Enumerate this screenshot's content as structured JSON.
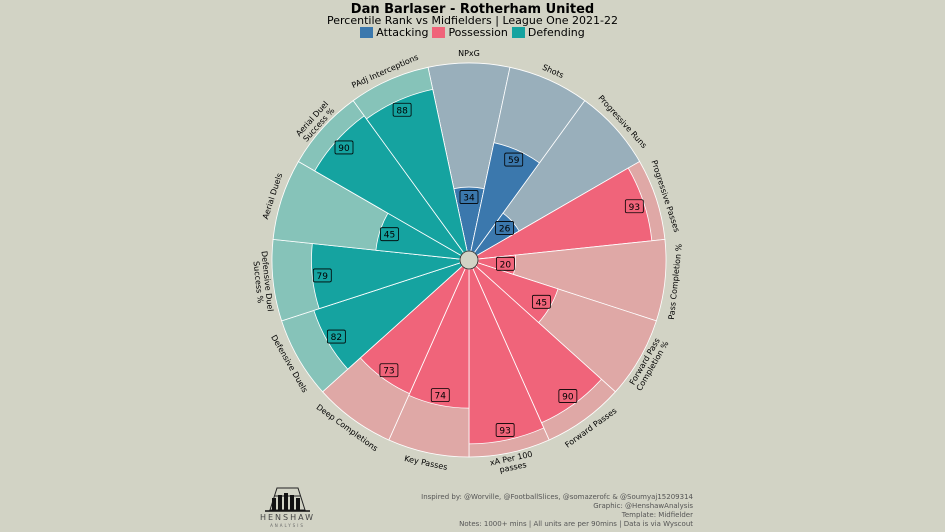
{
  "header": {
    "title": "Dan Barlaser - Rotherham United",
    "subtitle": "Percentile Rank vs Midfielders | League One 2021-22"
  },
  "legend": [
    {
      "label": "Attacking",
      "color": "#3b78ad"
    },
    {
      "label": "Possession",
      "color": "#f0647a"
    },
    {
      "label": "Defending",
      "color": "#15a3a0"
    }
  ],
  "chart_data": {
    "type": "polar-bar",
    "title": "Dan Barlaser - Rotherham United",
    "scale": [
      0,
      100
    ],
    "categories": [
      "NPxG",
      "Shots",
      "Progressive Runs",
      "Progressive Passes",
      "Pass Completion %",
      "Forward Pass Completion %",
      "Forward Passes",
      "xA Per 100 passes",
      "Key Passes",
      "Deep Completions",
      "Defensive Duels",
      "Defensive Duel Success %",
      "Aerial Duels",
      "Aerial Duel Success %",
      "PAdj Interceptions"
    ],
    "label_lines": [
      [
        "NPxG"
      ],
      [
        "Shots"
      ],
      [
        "Progressive Runs"
      ],
      [
        "Progressive Passes"
      ],
      [
        "Pass Completion %"
      ],
      [
        "Forward Pass",
        "Completion %"
      ],
      [
        "Forward Passes"
      ],
      [
        "xA Per 100",
        "passes"
      ],
      [
        "Key Passes"
      ],
      [
        "Deep Completions"
      ],
      [
        "Defensive Duels"
      ],
      [
        "Defensive Duel",
        "Success %"
      ],
      [
        "Aerial Duels"
      ],
      [
        "Aerial Duel",
        "Success %"
      ],
      [
        "PAdj Interceptions"
      ]
    ],
    "groups": [
      "Attacking",
      "Attacking",
      "Attacking",
      "Possession",
      "Possession",
      "Possession",
      "Possession",
      "Possession",
      "Possession",
      "Possession",
      "Defending",
      "Defending",
      "Defending",
      "Defending",
      "Defending"
    ],
    "values": [
      34,
      59,
      26,
      93,
      20,
      45,
      90,
      93,
      74,
      73,
      82,
      79,
      45,
      90,
      88
    ],
    "value_labels": [
      "34",
      "59",
      "26",
      "93",
      "20",
      "45",
      "90",
      "93",
      "74",
      "73",
      "82",
      "79",
      "45",
      "90",
      "88"
    ],
    "colors": {
      "Attacking": {
        "bar": "#3b78ad",
        "bg": "#99afbb"
      },
      "Possession": {
        "bar": "#f0647a",
        "bg": "#dfa8a6"
      },
      "Defending": {
        "bar": "#15a3a0",
        "bg": "#86c3b9"
      }
    }
  },
  "footer": {
    "credits": [
      "Inspired by: @Worville, @FootballSlices, @somazerofc & @Soumyaj15209314",
      "Graphic: @HenshawAnalysis",
      "Template: Midfielder",
      "Notes: 1000+ mins | All units are per 90mins | Data is via Wyscout"
    ],
    "logo_name": "HENSHAW",
    "logo_sub": "ANALYSIS"
  }
}
